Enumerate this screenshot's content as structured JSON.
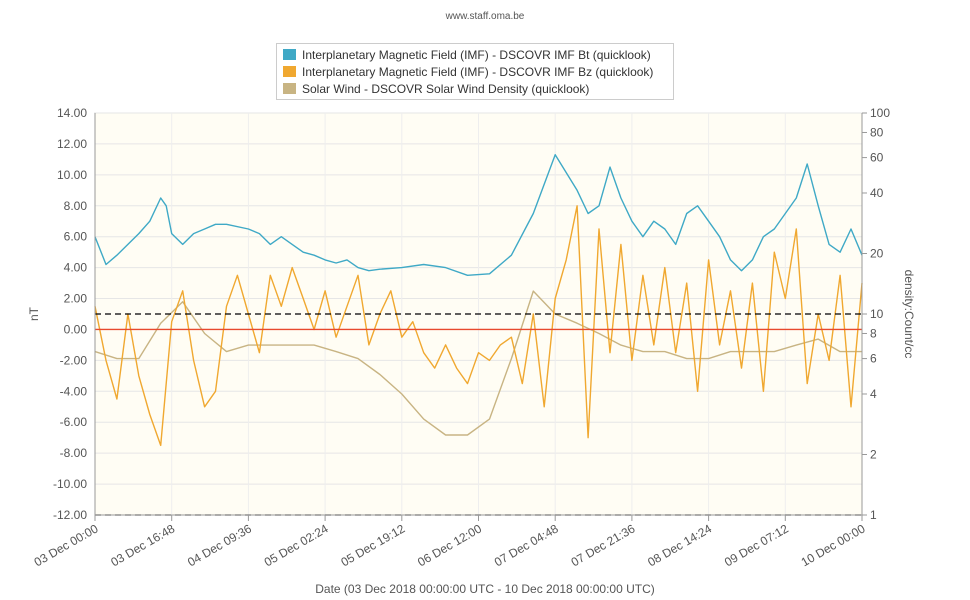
{
  "attribution": "www.staff.oma.be",
  "legend": [
    {
      "label": "Interplanetary Magnetic Field (IMF) - DSCOVR IMF Bt (quicklook)",
      "color": "#3fa9c6"
    },
    {
      "label": "Interplanetary Magnetic Field (IMF) - DSCOVR IMF Bz (quicklook)",
      "color": "#f0a830"
    },
    {
      "label": "Solar Wind - DSCOVR Solar Wind Density (quicklook)",
      "color": "#c8b483"
    }
  ],
  "xaxis_title": "Date (03 Dec 2018 00:00:00 UTC - 10 Dec 2018 00:00:00 UTC)",
  "chart_data": {
    "type": "line",
    "xlabel": "Date (03 Dec 2018 00:00:00 UTC - 10 Dec 2018 00:00:00 UTC)",
    "ylabel_left": "nT",
    "ylabel_right": "density:Count/cc",
    "xlim": [
      "2018-12-03 00:00",
      "2018-12-10 00:00"
    ],
    "ylim_left": [
      -12,
      14
    ],
    "ylim_right": [
      1,
      100
    ],
    "right_axis_scale": "log",
    "grid": true,
    "legend_position": "top-center",
    "x_tick_labels": [
      "03 Dec 00:00",
      "03 Dec 16:48",
      "04 Dec 09:36",
      "05 Dec 02:24",
      "05 Dec 19:12",
      "06 Dec 12:00",
      "07 Dec 04:48",
      "07 Dec 21:36",
      "08 Dec 14:24",
      "09 Dec 07:12",
      "10 Dec 00:00"
    ],
    "y_tick_labels_left": [
      "14.00",
      "12.00",
      "10.00",
      "8.00",
      "6.00",
      "4.00",
      "2.00",
      "0.00",
      "-2.00",
      "-4.00",
      "-6.00",
      "-8.00",
      "-10.00",
      "-12.00"
    ],
    "y_tick_labels_right": [
      "100",
      "80",
      "60",
      "40",
      "20",
      "10",
      "8",
      "6",
      "4",
      "2",
      "1"
    ],
    "reference_lines": [
      {
        "axis": "left",
        "value": 0,
        "color": "#e8492d",
        "style": "solid"
      },
      {
        "axis": "left",
        "value": 1,
        "color": "#000000",
        "style": "dashed"
      },
      {
        "axis": "left",
        "value": -12,
        "color": "#000000",
        "style": "dashed"
      }
    ],
    "series": [
      {
        "name": "Interplanetary Magnetic Field (IMF) - DSCOVR IMF Bt (quicklook)",
        "axis": "left",
        "color": "#3fa9c6",
        "x": [
          0,
          0.1,
          0.2,
          0.3,
          0.4,
          0.5,
          0.6,
          0.65,
          0.7,
          0.8,
          0.9,
          1.0,
          1.1,
          1.2,
          1.4,
          1.5,
          1.6,
          1.7,
          1.8,
          1.9,
          2.0,
          2.1,
          2.2,
          2.3,
          2.4,
          2.5,
          2.6,
          2.8,
          3.0,
          3.2,
          3.4,
          3.6,
          3.8,
          4.0,
          4.2,
          4.4,
          4.5,
          4.6,
          4.7,
          4.8,
          4.9,
          5.0,
          5.1,
          5.2,
          5.3,
          5.4,
          5.5,
          5.6,
          5.7,
          5.8,
          5.9,
          6.0,
          6.1,
          6.2,
          6.3,
          6.4,
          6.5,
          6.6,
          6.7,
          6.8,
          6.9,
          7.0
        ],
        "values": [
          6.0,
          4.2,
          4.8,
          5.5,
          6.2,
          7.0,
          8.5,
          8.0,
          6.2,
          5.5,
          6.2,
          6.5,
          6.8,
          6.8,
          6.5,
          6.2,
          5.5,
          6.0,
          5.5,
          5.0,
          4.8,
          4.5,
          4.3,
          4.5,
          4.0,
          3.8,
          3.9,
          4.0,
          4.2,
          4.0,
          3.5,
          3.6,
          4.8,
          7.5,
          11.3,
          9.0,
          7.5,
          8.0,
          10.5,
          8.5,
          7.0,
          6.0,
          7.0,
          6.5,
          5.5,
          7.5,
          8.0,
          7.0,
          6.0,
          4.5,
          3.8,
          4.5,
          6.0,
          6.5,
          7.5,
          8.5,
          10.7,
          8.0,
          5.5,
          5.0,
          6.5,
          4.8
        ]
      },
      {
        "name": "Interplanetary Magnetic Field (IMF) - DSCOVR IMF Bz (quicklook)",
        "axis": "left",
        "color": "#f0a830",
        "x": [
          0,
          0.1,
          0.2,
          0.3,
          0.4,
          0.5,
          0.6,
          0.7,
          0.8,
          0.9,
          1.0,
          1.1,
          1.2,
          1.3,
          1.4,
          1.5,
          1.6,
          1.7,
          1.8,
          1.9,
          2.0,
          2.1,
          2.2,
          2.3,
          2.4,
          2.5,
          2.6,
          2.7,
          2.8,
          2.9,
          3.0,
          3.1,
          3.2,
          3.3,
          3.4,
          3.5,
          3.6,
          3.7,
          3.8,
          3.9,
          4.0,
          4.1,
          4.2,
          4.3,
          4.4,
          4.5,
          4.6,
          4.7,
          4.8,
          4.9,
          5.0,
          5.1,
          5.2,
          5.3,
          5.4,
          5.5,
          5.6,
          5.7,
          5.8,
          5.9,
          6.0,
          6.1,
          6.2,
          6.3,
          6.4,
          6.5,
          6.6,
          6.7,
          6.8,
          6.9,
          7.0
        ],
        "values": [
          1.5,
          -2.0,
          -4.5,
          1.0,
          -3.0,
          -5.5,
          -7.5,
          0.5,
          2.5,
          -2.0,
          -5.0,
          -4.0,
          1.5,
          3.5,
          1.0,
          -1.5,
          3.5,
          1.5,
          4.0,
          2.0,
          0.0,
          2.5,
          -0.5,
          1.5,
          3.5,
          -1.0,
          1.0,
          2.5,
          -0.5,
          0.5,
          -1.5,
          -2.5,
          -1.0,
          -2.5,
          -3.5,
          -1.5,
          -2.0,
          -1.0,
          -0.5,
          -3.5,
          1.0,
          -5.0,
          2.0,
          4.5,
          8.0,
          -7.0,
          6.5,
          -1.5,
          5.5,
          -2.0,
          3.5,
          -1.0,
          4.0,
          -1.5,
          3.0,
          -4.0,
          4.5,
          -1.0,
          2.5,
          -2.5,
          3.0,
          -4.0,
          5.0,
          2.0,
          6.5,
          -3.5,
          1.0,
          -2.0,
          3.5,
          -5.0,
          3.0
        ]
      },
      {
        "name": "Solar Wind - DSCOVR Solar Wind Density (quicklook)",
        "axis": "right",
        "color": "#c8b483",
        "x": [
          0,
          0.2,
          0.4,
          0.6,
          0.8,
          1.0,
          1.2,
          1.4,
          1.6,
          1.8,
          2.0,
          2.2,
          2.4,
          2.6,
          2.8,
          3.0,
          3.2,
          3.4,
          3.6,
          3.8,
          4.0,
          4.2,
          4.4,
          4.6,
          4.8,
          5.0,
          5.2,
          5.4,
          5.6,
          5.8,
          6.0,
          6.2,
          6.4,
          6.6,
          6.8,
          7.0
        ],
        "values": [
          6.5,
          6.0,
          6.0,
          9.0,
          11.5,
          8.0,
          6.5,
          7.0,
          7.0,
          7.0,
          7.0,
          6.5,
          6.0,
          5.0,
          4.0,
          3.0,
          2.5,
          2.5,
          3.0,
          6.0,
          13.0,
          10.0,
          9.0,
          8.0,
          7.0,
          6.5,
          6.5,
          6.0,
          6.0,
          6.5,
          6.5,
          6.5,
          7.0,
          7.5,
          6.5,
          6.5
        ]
      }
    ]
  }
}
